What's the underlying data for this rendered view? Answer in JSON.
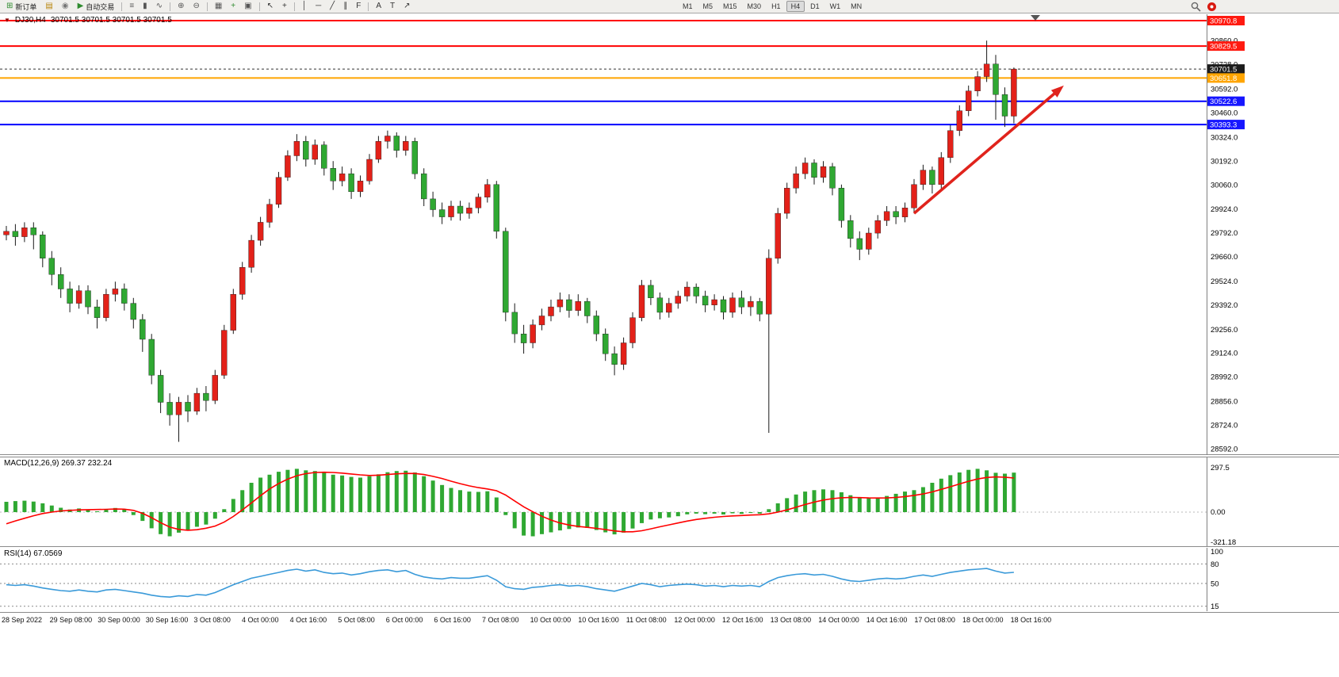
{
  "toolbar": {
    "items": [
      {
        "name": "new-order-button",
        "glyph": "⊞",
        "glyph_color": "#2e8b2e",
        "label": "新订单"
      },
      {
        "name": "market-watch-button",
        "glyph": "▤",
        "glyph_color": "#b8860b"
      },
      {
        "name": "navigator-button",
        "glyph": "◉",
        "glyph_color": "#777777"
      },
      {
        "name": "autotrade-button",
        "glyph": "▶",
        "glyph_color": "#2e8b2e",
        "label": "自动交易"
      },
      {
        "sep": true
      },
      {
        "name": "bar-chart-button",
        "glyph": "≡",
        "glyph_color": "#555555"
      },
      {
        "name": "candlestick-chart-button",
        "glyph": "▮",
        "glyph_color": "#555555"
      },
      {
        "name": "line-chart-button",
        "glyph": "∿",
        "glyph_color": "#555555"
      },
      {
        "sep": true
      },
      {
        "name": "zoom-in-button",
        "glyph": "⊕",
        "glyph_color": "#555555"
      },
      {
        "name": "zoom-out-button",
        "glyph": "⊖",
        "glyph_color": "#555555"
      },
      {
        "sep": true
      },
      {
        "name": "tile-windows-button",
        "glyph": "▦",
        "glyph_color": "#555555"
      },
      {
        "name": "indicators-button",
        "glyph": "+",
        "glyph_color": "#2e8b2e"
      },
      {
        "name": "templates-button",
        "glyph": "▣",
        "glyph_color": "#555555"
      },
      {
        "sep": true
      },
      {
        "name": "cursor-button",
        "glyph": "↖",
        "glyph_color": "#333333"
      },
      {
        "name": "crosshair-button",
        "glyph": "+",
        "glyph_color": "#333333"
      },
      {
        "sep": true
      },
      {
        "name": "vertical-line-button",
        "glyph": "│",
        "glyph_color": "#333333"
      },
      {
        "name": "horizontal-line-button",
        "glyph": "─",
        "glyph_color": "#333333"
      },
      {
        "name": "trendline-button",
        "glyph": "╱",
        "glyph_color": "#333333"
      },
      {
        "name": "channel-button",
        "glyph": "∥",
        "glyph_color": "#333333"
      },
      {
        "name": "fibonacci-button",
        "glyph": "F",
        "glyph_color": "#333333"
      },
      {
        "sep": true
      },
      {
        "name": "text-button",
        "glyph": "A",
        "glyph_color": "#333333"
      },
      {
        "name": "text-label-button",
        "glyph": "T",
        "glyph_color": "#333333"
      },
      {
        "name": "arrows-button",
        "glyph": "↗",
        "glyph_color": "#333333"
      }
    ],
    "timeframes": [
      "M1",
      "M5",
      "M15",
      "M30",
      "H1",
      "H4",
      "D1",
      "W1",
      "MN"
    ],
    "active_timeframe": "H4"
  },
  "chart": {
    "title": "DJ30,H4",
    "ohlc_text": "30701.5 30701.5 30701.5 30701.5",
    "marker_glyph": "▼"
  },
  "indicators": {
    "macd_label": "MACD(12,26,9) 269.37 232.24",
    "rsi_label": "RSI(14) 67.0569"
  },
  "chart_data": {
    "type": "candlestick",
    "symbol": "DJ30",
    "timeframe": "H4",
    "price_range": [
      28592.0,
      30970.8
    ],
    "colors": {
      "bull": "#e32119",
      "bear": "#2fa832",
      "wick": "#1a1a1a",
      "macd_hist": "#2fa832",
      "macd_signal": "#ff0000",
      "rsi_line": "#3a9ad9",
      "arrow": "#e0231c"
    },
    "levels": [
      {
        "price": 30970.8,
        "label": "30970.8",
        "color": "#ff0000",
        "badge": "#ff1a10",
        "width": 2,
        "style": "solid"
      },
      {
        "price": 30829.5,
        "label": "30829.5",
        "color": "#ff0000",
        "badge": "#ff1a10",
        "width": 2,
        "style": "solid"
      },
      {
        "price": 30701.5,
        "label": "30701.5",
        "color": "#333333",
        "badge": "#1c1c1c",
        "width": 1,
        "style": "dash"
      },
      {
        "price": 30651.8,
        "label": "30651.8",
        "color": "#ffa500",
        "badge": "#ffa500",
        "width": 2,
        "style": "solid"
      },
      {
        "price": 30522.6,
        "label": "30522.6",
        "color": "#0000ff",
        "badge": "#1616ff",
        "width": 2,
        "style": "solid"
      },
      {
        "price": 30393.3,
        "label": "30393.3",
        "color": "#0000ff",
        "badge": "#1616ff",
        "width": 2,
        "style": "solid"
      }
    ],
    "price_axis_ticks": [
      30860.0,
      30728.0,
      30592.0,
      30460.0,
      30324.0,
      30192.0,
      30060.0,
      29924.0,
      29792.0,
      29660.0,
      29524.0,
      29392.0,
      29256.0,
      29124.0,
      28992.0,
      28856.0,
      28724.0,
      28592.0
    ],
    "time_labels": [
      "28 Sep 2022",
      "29 Sep 08:00",
      "30 Sep 00:00",
      "30 Sep 16:00",
      "3 Oct 08:00",
      "4 Oct 00:00",
      "4 Oct 16:00",
      "5 Oct 08:00",
      "6 Oct 00:00",
      "6 Oct 16:00",
      "7 Oct 08:00",
      "10 Oct 00:00",
      "10 Oct 16:00",
      "11 Oct 08:00",
      "12 Oct 00:00",
      "12 Oct 16:00",
      "13 Oct 08:00",
      "14 Oct 00:00",
      "14 Oct 16:00",
      "17 Oct 08:00",
      "18 Oct 00:00",
      "18 Oct 16:00"
    ],
    "ohlc": [
      [
        29780,
        29830,
        29750,
        29800
      ],
      [
        29800,
        29840,
        29720,
        29770
      ],
      [
        29770,
        29850,
        29740,
        29820
      ],
      [
        29820,
        29850,
        29700,
        29780
      ],
      [
        29780,
        29800,
        29600,
        29650
      ],
      [
        29650,
        29690,
        29500,
        29560
      ],
      [
        29560,
        29600,
        29430,
        29480
      ],
      [
        29480,
        29520,
        29350,
        29400
      ],
      [
        29400,
        29500,
        29370,
        29470
      ],
      [
        29470,
        29500,
        29340,
        29380
      ],
      [
        29380,
        29420,
        29260,
        29320
      ],
      [
        29320,
        29480,
        29300,
        29450
      ],
      [
        29450,
        29520,
        29410,
        29480
      ],
      [
        29480,
        29510,
        29360,
        29400
      ],
      [
        29400,
        29430,
        29260,
        29310
      ],
      [
        29310,
        29340,
        29130,
        29200
      ],
      [
        29200,
        29230,
        28950,
        29000
      ],
      [
        29000,
        29030,
        28790,
        28850
      ],
      [
        28850,
        28900,
        28720,
        28780
      ],
      [
        28780,
        28880,
        28630,
        28850
      ],
      [
        28850,
        28890,
        28740,
        28800
      ],
      [
        28800,
        28930,
        28780,
        28900
      ],
      [
        28900,
        28940,
        28800,
        28860
      ],
      [
        28860,
        29030,
        28840,
        29000
      ],
      [
        29000,
        29280,
        28980,
        29250
      ],
      [
        29250,
        29480,
        29230,
        29450
      ],
      [
        29450,
        29630,
        29420,
        29600
      ],
      [
        29600,
        29780,
        29570,
        29750
      ],
      [
        29750,
        29880,
        29720,
        29850
      ],
      [
        29850,
        29980,
        29820,
        29950
      ],
      [
        29950,
        30130,
        29930,
        30100
      ],
      [
        30100,
        30250,
        30080,
        30220
      ],
      [
        30220,
        30340,
        30190,
        30300
      ],
      [
        30300,
        30330,
        30160,
        30200
      ],
      [
        30200,
        30310,
        30170,
        30280
      ],
      [
        30280,
        30300,
        30110,
        30150
      ],
      [
        30150,
        30190,
        30030,
        30080
      ],
      [
        30080,
        30160,
        30050,
        30120
      ],
      [
        30120,
        30150,
        29980,
        30020
      ],
      [
        30020,
        30110,
        29990,
        30080
      ],
      [
        30080,
        30230,
        30060,
        30200
      ],
      [
        30200,
        30330,
        30180,
        30300
      ],
      [
        30300,
        30360,
        30260,
        30330
      ],
      [
        30330,
        30350,
        30210,
        30250
      ],
      [
        30250,
        30330,
        30220,
        30300
      ],
      [
        30300,
        30320,
        30090,
        30120
      ],
      [
        30120,
        30150,
        29940,
        29980
      ],
      [
        29980,
        30020,
        29880,
        29920
      ],
      [
        29920,
        29960,
        29840,
        29880
      ],
      [
        29880,
        29970,
        29860,
        29940
      ],
      [
        29940,
        29970,
        29860,
        29900
      ],
      [
        29900,
        29960,
        29870,
        29930
      ],
      [
        29930,
        30010,
        29900,
        29990
      ],
      [
        29990,
        30090,
        29960,
        30060
      ],
      [
        30060,
        30080,
        29760,
        29800
      ],
      [
        29800,
        29820,
        29300,
        29350
      ],
      [
        29350,
        29400,
        29180,
        29230
      ],
      [
        29230,
        29280,
        29120,
        29180
      ],
      [
        29180,
        29310,
        29150,
        29280
      ],
      [
        29280,
        29370,
        29250,
        29330
      ],
      [
        29330,
        29420,
        29300,
        29380
      ],
      [
        29380,
        29460,
        29350,
        29420
      ],
      [
        29420,
        29450,
        29320,
        29360
      ],
      [
        29360,
        29450,
        29330,
        29410
      ],
      [
        29410,
        29430,
        29290,
        29330
      ],
      [
        29330,
        29360,
        29190,
        29230
      ],
      [
        29230,
        29260,
        29080,
        29120
      ],
      [
        29120,
        29160,
        29000,
        29060
      ],
      [
        29060,
        29210,
        29030,
        29180
      ],
      [
        29180,
        29350,
        29150,
        29320
      ],
      [
        29320,
        29530,
        29300,
        29500
      ],
      [
        29500,
        29530,
        29390,
        29430
      ],
      [
        29430,
        29460,
        29310,
        29350
      ],
      [
        29350,
        29430,
        29320,
        29400
      ],
      [
        29400,
        29470,
        29370,
        29440
      ],
      [
        29440,
        29520,
        29410,
        29490
      ],
      [
        29490,
        29510,
        29400,
        29440
      ],
      [
        29440,
        29470,
        29350,
        29390
      ],
      [
        29390,
        29450,
        29360,
        29420
      ],
      [
        29420,
        29440,
        29310,
        29350
      ],
      [
        29350,
        29460,
        29320,
        29430
      ],
      [
        29430,
        29470,
        29340,
        29380
      ],
      [
        29380,
        29440,
        29330,
        29410
      ],
      [
        29410,
        29430,
        29300,
        29340
      ],
      [
        29340,
        29700,
        28680,
        29650
      ],
      [
        29650,
        29930,
        29620,
        29900
      ],
      [
        29900,
        30070,
        29870,
        30040
      ],
      [
        30040,
        30160,
        30010,
        30120
      ],
      [
        30120,
        30210,
        30090,
        30180
      ],
      [
        30180,
        30200,
        30060,
        30100
      ],
      [
        30100,
        30190,
        30070,
        30160
      ],
      [
        30160,
        30180,
        30000,
        30040
      ],
      [
        30040,
        30060,
        29820,
        29860
      ],
      [
        29860,
        29890,
        29710,
        29760
      ],
      [
        29760,
        29800,
        29640,
        29700
      ],
      [
        29700,
        29820,
        29670,
        29790
      ],
      [
        29790,
        29890,
        29760,
        29860
      ],
      [
        29860,
        29940,
        29830,
        29910
      ],
      [
        29910,
        29940,
        29840,
        29880
      ],
      [
        29880,
        29960,
        29850,
        29930
      ],
      [
        29930,
        30090,
        29900,
        30060
      ],
      [
        30060,
        30170,
        30030,
        30140
      ],
      [
        30140,
        30160,
        30010,
        30060
      ],
      [
        30060,
        30240,
        30030,
        30210
      ],
      [
        30210,
        30390,
        30180,
        30360
      ],
      [
        30360,
        30500,
        30330,
        30470
      ],
      [
        30470,
        30610,
        30440,
        30580
      ],
      [
        30580,
        30690,
        30550,
        30660
      ],
      [
        30660,
        30860,
        30630,
        30730
      ],
      [
        30730,
        30780,
        30420,
        30560
      ],
      [
        30560,
        30600,
        30380,
        30440
      ],
      [
        30440,
        30710,
        30400,
        30701.5
      ]
    ],
    "macd": {
      "params": "12,26,9",
      "current_macd": 269.37,
      "current_signal": 232.24,
      "axis_labels": [
        "297.5",
        "0.00",
        "-321.18"
      ],
      "histogram": [
        70,
        75,
        78,
        72,
        60,
        45,
        30,
        18,
        25,
        15,
        5,
        18,
        28,
        20,
        -20,
        -60,
        -110,
        -150,
        -165,
        -140,
        -125,
        -100,
        -85,
        -45,
        20,
        90,
        150,
        200,
        235,
        255,
        275,
        288,
        295,
        285,
        280,
        268,
        255,
        250,
        240,
        235,
        245,
        258,
        272,
        280,
        282,
        270,
        245,
        215,
        185,
        165,
        150,
        140,
        138,
        142,
        100,
        -20,
        -110,
        -160,
        -165,
        -150,
        -138,
        -125,
        -115,
        -105,
        -108,
        -122,
        -138,
        -152,
        -140,
        -112,
        -75,
        -50,
        -42,
        -36,
        -28,
        -15,
        -10,
        -14,
        -10,
        -16,
        -8,
        -12,
        -6,
        -10,
        20,
        60,
        95,
        120,
        140,
        150,
        155,
        150,
        135,
        115,
        100,
        95,
        100,
        110,
        125,
        140,
        150,
        170,
        200,
        228,
        252,
        270,
        288,
        295,
        285,
        268,
        262,
        269.37
      ],
      "signal": [
        -80,
        -60,
        -42,
        -25,
        -10,
        0,
        8,
        12,
        15,
        17,
        18,
        19,
        21,
        20,
        12,
        -8,
        -38,
        -72,
        -102,
        -118,
        -124,
        -120,
        -110,
        -95,
        -68,
        -30,
        15,
        62,
        112,
        158,
        195,
        225,
        248,
        262,
        270,
        272,
        270,
        266,
        260,
        254,
        250,
        252,
        256,
        261,
        264,
        263,
        256,
        244,
        229,
        211,
        194,
        179,
        167,
        158,
        146,
        116,
        76,
        36,
        2,
        -28,
        -54,
        -74,
        -88,
        -98,
        -104,
        -111,
        -119,
        -128,
        -134,
        -134,
        -127,
        -114,
        -100,
        -87,
        -74,
        -61,
        -50,
        -42,
        -35,
        -30,
        -26,
        -23,
        -20,
        -18,
        -12,
        0,
        15,
        33,
        52,
        68,
        82,
        92,
        98,
        100,
        99,
        97,
        96,
        97,
        100,
        106,
        114,
        124,
        138,
        155,
        173,
        192,
        210,
        226,
        236,
        240,
        238,
        232.24
      ]
    },
    "rsi": {
      "period": 14,
      "current": 67.0569,
      "axis_labels": [
        "100",
        "80",
        "50",
        "15"
      ],
      "levels": [
        80,
        50,
        15
      ],
      "values": [
        48,
        47,
        48,
        46,
        43,
        41,
        39,
        38,
        40,
        38,
        37,
        40,
        41,
        39,
        37,
        35,
        32,
        30,
        29,
        31,
        30,
        33,
        32,
        36,
        42,
        48,
        53,
        58,
        61,
        64,
        67,
        70,
        72,
        69,
        71,
        67,
        65,
        66,
        63,
        65,
        68,
        70,
        71,
        68,
        70,
        64,
        60,
        58,
        57,
        59,
        58,
        58,
        60,
        62,
        55,
        45,
        42,
        41,
        44,
        45,
        47,
        48,
        46,
        47,
        45,
        42,
        40,
        38,
        42,
        46,
        50,
        48,
        45,
        47,
        48,
        49,
        48,
        46,
        47,
        45,
        47,
        46,
        47,
        45,
        53,
        59,
        62,
        64,
        65,
        63,
        64,
        61,
        57,
        54,
        53,
        55,
        57,
        58,
        57,
        58,
        61,
        63,
        61,
        64,
        67,
        69,
        71,
        72,
        73,
        69,
        66,
        67.0569
      ]
    },
    "arrow": {
      "from": {
        "index": 100,
        "price": 29900
      },
      "to": {
        "index": 116.5,
        "price": 30610
      }
    }
  }
}
